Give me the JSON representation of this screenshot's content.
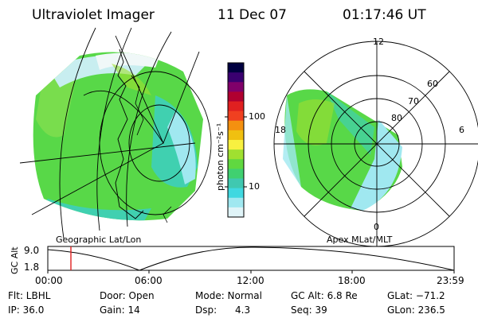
{
  "header": {
    "instrument": "Ultraviolet Imager",
    "date": "11 Dec 07",
    "time": "01:17:46 UT"
  },
  "left_panel": {
    "caption": "Geographic Lat/Lon"
  },
  "right_panel": {
    "caption": "Apex MLat/MLT",
    "mlt_labels": [
      "12",
      "18",
      "6",
      "0"
    ],
    "mlat_labels": [
      "60",
      "70",
      "80"
    ]
  },
  "colorbar": {
    "unit_label": "photon cm⁻²s⁻¹",
    "tick_labels": [
      "100",
      "10"
    ],
    "colors": [
      "#000040",
      "#3a0070",
      "#80006a",
      "#b00030",
      "#e02020",
      "#f04020",
      "#f49010",
      "#f0c010",
      "#f8f040",
      "#a0e030",
      "#60d840",
      "#40d070",
      "#40c8b0",
      "#40d8e0",
      "#a0e8f0",
      "#e0f4f8"
    ]
  },
  "altitude_plot": {
    "ylabel": "GC Alt",
    "y_ticks": [
      "9.0",
      "1.8"
    ],
    "x_ticks": [
      "00:00",
      "06:00",
      "12:00",
      "18:00",
      "23:59"
    ],
    "current_time_marker_color": "#e02020"
  },
  "status": {
    "row1": [
      "Flt: LBHL",
      "Door: Open",
      "Mode: Normal",
      "GC Alt: 6.8 Re",
      "GLat: −71.2"
    ],
    "row2": [
      "IP: 36.0",
      "Gain: 14",
      "Dsp:      4.3",
      "Seq: 39",
      "GLon: 236.5"
    ]
  }
}
